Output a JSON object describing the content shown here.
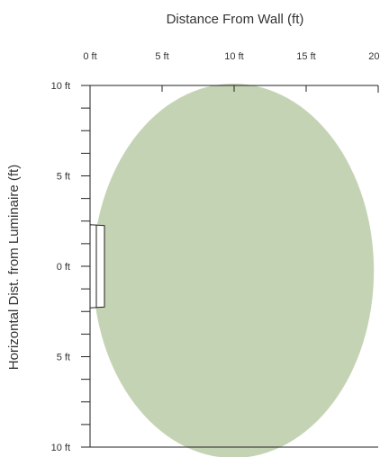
{
  "chart_data": {
    "type": "area",
    "title": "Distance From Wall (ft)",
    "xlabel": "Distance From Wall (ft)",
    "ylabel": "Horizontal Dist. from Luminaire (ft)",
    "x_axis_position": "top",
    "xlim": [
      0,
      20
    ],
    "ylim": [
      -10,
      10
    ],
    "x_ticks": [
      {
        "value": 0,
        "label": "0 ft"
      },
      {
        "value": 5,
        "label": "5 ft"
      },
      {
        "value": 10,
        "label": "10 ft"
      },
      {
        "value": 15,
        "label": "15 ft"
      },
      {
        "value": 20,
        "label": "20 ft"
      }
    ],
    "y_ticks": [
      {
        "value": 10,
        "label": "10 ft"
      },
      {
        "value": 5,
        "label": "5 ft"
      },
      {
        "value": 0,
        "label": "0 ft"
      },
      {
        "value": -5,
        "label": "5 ft"
      },
      {
        "value": -10,
        "label": "10 ft"
      }
    ],
    "y_minor_step": 1.25,
    "illuminated_area": {
      "shape": "ellipse",
      "x_min": 0.2,
      "x_max": 19.7,
      "y_min": -10.6,
      "y_max": 10.1,
      "color": "#c5d3b5"
    },
    "luminaire": {
      "x_min": 0,
      "x_max": 1.0,
      "y_min": -2.3,
      "y_max": 2.3,
      "color": "#ffffff",
      "stroke": "#222222"
    },
    "grid": false
  }
}
